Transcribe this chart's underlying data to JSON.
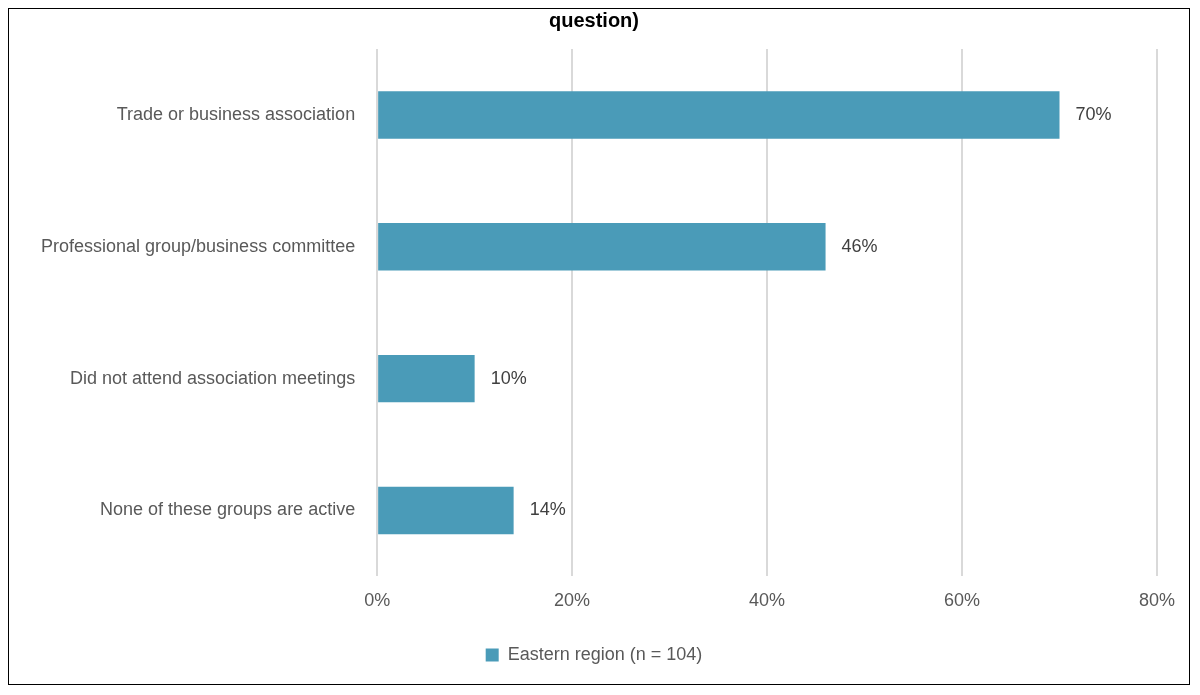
{
  "chart_data": {
    "type": "bar",
    "orientation": "horizontal",
    "title": "question)",
    "categories": [
      "Trade or business association",
      "Professional group/business committee",
      "Did not attend association meetings",
      "None of these groups are active"
    ],
    "series": [
      {
        "name": "Eastern region (n = 104)",
        "color": "#4a9bb8",
        "values": [
          70,
          46,
          10,
          14
        ],
        "value_labels": [
          "70%",
          "46%",
          "10%",
          "14%"
        ]
      }
    ],
    "xlim": [
      0,
      80
    ],
    "xticks": [
      {
        "value": 0,
        "label": "0%"
      },
      {
        "value": 20,
        "label": "20%"
      },
      {
        "value": 40,
        "label": "40%"
      },
      {
        "value": 60,
        "label": "60%"
      },
      {
        "value": 80,
        "label": "80%"
      }
    ],
    "grid": "x",
    "legend": "bottom"
  }
}
